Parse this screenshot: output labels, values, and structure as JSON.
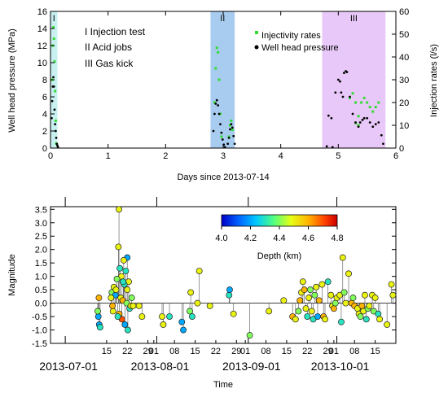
{
  "chart_data": [
    {
      "type": "scatter",
      "xlabel": "Days since 2013-07-14",
      "ylabel": "Well head pressure (MPa)",
      "ylabel_right": "Injection rates (l/s)",
      "xlim": [
        0,
        6
      ],
      "ylim": [
        0,
        16
      ],
      "ylim_right": [
        0,
        60
      ],
      "x_ticks": [
        "0",
        "1",
        "2",
        "3",
        "4",
        "5",
        "6"
      ],
      "y_ticks": [
        "0",
        "2",
        "4",
        "6",
        "8",
        "10",
        "12",
        "14",
        "16"
      ],
      "y_right_ticks": [
        "0",
        "10",
        "20",
        "30",
        "40",
        "50",
        "60"
      ],
      "phases": [
        {
          "label": "I",
          "start": 0.0,
          "end": 0.12,
          "color": "#c8f0f0"
        },
        {
          "label": "II",
          "start": 2.78,
          "end": 3.2,
          "color": "#a8ccf0"
        },
        {
          "label": "III",
          "start": 4.72,
          "end": 5.82,
          "color": "#e8c8f8"
        }
      ],
      "phase_legend": [
        "I   Injection test",
        "II  Acid jobs",
        "III  Gas kick"
      ],
      "legend": [
        "Injectivity rates",
        "Well head pressure"
      ],
      "colors": {
        "rates": "#33dd33",
        "pressure": "#000000"
      },
      "series": [
        {
          "name": "Well head pressure",
          "axis": "left",
          "points": [
            [
              0.02,
              3.5
            ],
            [
              0.03,
              5.5
            ],
            [
              0.04,
              7.2
            ],
            [
              0.05,
              8.3
            ],
            [
              0.06,
              7.2
            ],
            [
              0.07,
              4.5
            ],
            [
              0.08,
              2.8
            ],
            [
              0.09,
              2.0
            ],
            [
              0.1,
              1.2
            ],
            [
              0.11,
              0.5
            ],
            [
              0.12,
              0.3
            ],
            [
              0.13,
              0.1
            ],
            [
              2.83,
              2.0
            ],
            [
              2.85,
              4.0
            ],
            [
              2.87,
              5.2
            ],
            [
              2.89,
              5.6
            ],
            [
              2.91,
              5.0
            ],
            [
              2.93,
              4.0
            ],
            [
              2.95,
              2.8
            ],
            [
              2.97,
              1.8
            ],
            [
              2.99,
              1.0
            ],
            [
              3.01,
              0.4
            ],
            [
              3.03,
              0.1
            ],
            [
              3.08,
              0.5
            ],
            [
              3.1,
              1.2
            ],
            [
              3.12,
              2.2
            ],
            [
              3.14,
              2.8
            ],
            [
              3.16,
              2.4
            ],
            [
              3.18,
              1.4
            ],
            [
              3.2,
              0.5
            ],
            [
              4.8,
              0.2
            ],
            [
              4.9,
              0.1
            ],
            [
              4.95,
              6.5
            ],
            [
              5.0,
              8.0
            ],
            [
              5.03,
              7.8
            ],
            [
              5.05,
              6.5
            ],
            [
              5.08,
              6.0
            ],
            [
              5.1,
              8.8
            ],
            [
              5.13,
              9.0
            ],
            [
              5.15,
              8.9
            ],
            [
              5.2,
              6.0
            ],
            [
              5.25,
              4.0
            ],
            [
              5.3,
              3.0
            ],
            [
              5.35,
              2.5
            ],
            [
              5.38,
              3.0
            ],
            [
              5.42,
              3.3
            ],
            [
              5.45,
              3.5
            ],
            [
              5.5,
              3.5
            ],
            [
              5.55,
              3.0
            ],
            [
              5.6,
              2.5
            ],
            [
              5.65,
              2.8
            ],
            [
              5.7,
              3.0
            ],
            [
              5.75,
              1.5
            ],
            [
              5.78,
              0.5
            ],
            [
              4.83,
              3.8
            ],
            [
              4.88,
              3.5
            ]
          ]
        },
        {
          "name": "Injectivity rates",
          "axis": "right",
          "points": [
            [
              0.03,
              30
            ],
            [
              0.04,
              45
            ],
            [
              0.05,
              53
            ],
            [
              0.06,
              48
            ],
            [
              0.07,
              38
            ],
            [
              0.08,
              25
            ],
            [
              0.09,
              12
            ],
            [
              0.1,
              2
            ],
            [
              2.85,
              20
            ],
            [
              2.87,
              35
            ],
            [
              2.89,
              44
            ],
            [
              2.91,
              42
            ],
            [
              2.93,
              30
            ],
            [
              2.95,
              15
            ],
            [
              2.97,
              5
            ],
            [
              3.1,
              5
            ],
            [
              3.12,
              10
            ],
            [
              3.14,
              12
            ],
            [
              3.16,
              8
            ],
            [
              5.2,
              22
            ],
            [
              5.25,
              24
            ],
            [
              5.3,
              20
            ],
            [
              5.35,
              14
            ],
            [
              5.4,
              20
            ],
            [
              5.45,
              22
            ],
            [
              5.5,
              20
            ],
            [
              5.55,
              18
            ],
            [
              5.6,
              16
            ],
            [
              5.65,
              18
            ],
            [
              5.7,
              20
            ],
            [
              5.3,
              11
            ],
            [
              5.35,
              10
            ]
          ]
        }
      ]
    },
    {
      "type": "scatter",
      "xlabel": "Time",
      "ylabel": "Magnitude",
      "ylim": [
        -1.5,
        3.6
      ],
      "y_ticks": [
        "-1.5",
        "-1.0",
        "-0.5",
        "0.0",
        "0.5",
        "1.0",
        "1.5",
        "2.0",
        "2.5",
        "3.0",
        "3.5"
      ],
      "x_day_ticks": [
        "15",
        "22",
        "29",
        "01",
        "08",
        "15",
        "22",
        "29",
        "01",
        "08",
        "15",
        "22",
        "29",
        "01",
        "08",
        "15"
      ],
      "x_day_offsets": [
        -1,
        6,
        13,
        15,
        22,
        29,
        36,
        43,
        46,
        53,
        60,
        67,
        74,
        76,
        83,
        90
      ],
      "x_month_labels": [
        "2013-07-01",
        "2013-08-01",
        "2013-09-01",
        "2013-10-01"
      ],
      "x_month_offsets": [
        -15,
        16,
        47,
        77
      ],
      "xlim_days": [
        -20,
        97
      ],
      "colorbar": {
        "label": "Depth (km)",
        "range": [
          4.0,
          4.8
        ],
        "ticks": [
          "4.0",
          "4.2",
          "4.4",
          "4.6",
          "4.8"
        ]
      },
      "events": [
        {
          "day": 3.2,
          "mag": 3.5,
          "depth": 4.5
        },
        {
          "day": 3.0,
          "mag": 2.1,
          "depth": 4.5
        },
        {
          "day": 6.0,
          "mag": 1.7,
          "depth": 4.2
        },
        {
          "day": 4.8,
          "mag": 1.6,
          "depth": 4.5
        },
        {
          "day": 3.5,
          "mag": 1.3,
          "depth": 4.3
        },
        {
          "day": 5.5,
          "mag": 1.2,
          "depth": 4.3
        },
        {
          "day": 4.0,
          "mag": 1.0,
          "depth": 4.5
        },
        {
          "day": 2.5,
          "mag": 0.9,
          "depth": 4.4
        },
        {
          "day": 6.5,
          "mag": 0.8,
          "depth": 4.5
        },
        {
          "day": 5.0,
          "mag": 0.7,
          "depth": 4.3
        },
        {
          "day": 1.5,
          "mag": 0.6,
          "depth": 4.5
        },
        {
          "day": 0.8,
          "mag": 0.4,
          "depth": 4.4
        },
        {
          "day": 2.0,
          "mag": 0.3,
          "depth": 4.2
        },
        {
          "day": 3.8,
          "mag": 0.2,
          "depth": 4.5
        },
        {
          "day": 4.5,
          "mag": 0.1,
          "depth": 4.6
        },
        {
          "day": 5.8,
          "mag": 0.0,
          "depth": 4.4
        },
        {
          "day": 6.8,
          "mag": -0.2,
          "depth": 4.3
        },
        {
          "day": 3.3,
          "mag": -0.4,
          "depth": 4.6
        },
        {
          "day": 4.2,
          "mag": -0.6,
          "depth": 4.7
        },
        {
          "day": 2.8,
          "mag": -0.5,
          "depth": 4.3
        },
        {
          "day": 1.2,
          "mag": -0.3,
          "depth": 4.5
        },
        {
          "day": 7.2,
          "mag": -0.1,
          "depth": 4.5
        },
        {
          "day": 5.2,
          "mag": -0.8,
          "depth": 4.2
        },
        {
          "day": 6.2,
          "mag": -1.0,
          "depth": 4.3
        },
        {
          "day": -3.5,
          "mag": -0.8,
          "depth": 4.2
        },
        {
          "day": -3.8,
          "mag": -0.5,
          "depth": 4.2
        },
        {
          "day": -4.0,
          "mag": -0.3,
          "depth": 4.4
        },
        {
          "day": -3.6,
          "mag": 0.2,
          "depth": 4.6
        },
        {
          "day": -3.2,
          "mag": -0.9,
          "depth": 4.3
        },
        {
          "day": 0.5,
          "mag": 0.2,
          "depth": 4.5
        },
        {
          "day": 1.0,
          "mag": -0.1,
          "depth": 4.6
        },
        {
          "day": 2.2,
          "mag": 0.5,
          "depth": 4.5
        },
        {
          "day": 7.5,
          "mag": 0.2,
          "depth": 4.4
        },
        {
          "day": 8.0,
          "mag": -0.1,
          "depth": 4.5
        },
        {
          "day": 6.0,
          "mag": 0.5,
          "depth": 4.5
        },
        {
          "day": 4.6,
          "mag": 0.8,
          "depth": 4.3
        },
        {
          "day": 10.0,
          "mag": -0.1,
          "depth": 4.5
        },
        {
          "day": 11.0,
          "mag": -0.5,
          "depth": 4.5
        },
        {
          "day": 17.8,
          "mag": -0.5,
          "depth": 4.5
        },
        {
          "day": 18.2,
          "mag": -0.8,
          "depth": 4.5
        },
        {
          "day": 20.3,
          "mag": -0.5,
          "depth": 4.3
        },
        {
          "day": 24.5,
          "mag": -0.7,
          "depth": 4.2
        },
        {
          "day": 25.0,
          "mag": -1.0,
          "depth": 4.2
        },
        {
          "day": 27.2,
          "mag": -0.3,
          "depth": 4.4
        },
        {
          "day": 28.0,
          "mag": -0.5,
          "depth": 4.3
        },
        {
          "day": 27.5,
          "mag": 0.4,
          "depth": 4.5
        },
        {
          "day": 29.8,
          "mag": 0.0,
          "depth": 4.5
        },
        {
          "day": 30.4,
          "mag": 1.2,
          "depth": 4.5
        },
        {
          "day": 34.0,
          "mag": -0.1,
          "depth": 4.5
        },
        {
          "day": 40.5,
          "mag": 0.3,
          "depth": 4.3
        },
        {
          "day": 40.7,
          "mag": 0.5,
          "depth": 4.2
        },
        {
          "day": 42.0,
          "mag": -0.4,
          "depth": 4.5
        },
        {
          "day": 47.5,
          "mag": -1.2,
          "depth": 4.4
        },
        {
          "day": 54.0,
          "mag": -0.3,
          "depth": 4.5
        },
        {
          "day": 59.0,
          "mag": 0.1,
          "depth": 4.5
        },
        {
          "day": 62.0,
          "mag": -0.5,
          "depth": 4.6
        },
        {
          "day": 63.0,
          "mag": -0.6,
          "depth": 4.5
        },
        {
          "day": 64.0,
          "mag": -0.3,
          "depth": 4.4
        },
        {
          "day": 64.5,
          "mag": 0.1,
          "depth": 4.6
        },
        {
          "day": 65.0,
          "mag": 0.4,
          "depth": 4.5
        },
        {
          "day": 65.5,
          "mag": 0.8,
          "depth": 4.5
        },
        {
          "day": 66.0,
          "mag": 0.5,
          "depth": 4.6
        },
        {
          "day": 66.5,
          "mag": -0.2,
          "depth": 4.5
        },
        {
          "day": 67.0,
          "mag": -0.5,
          "depth": 4.3
        },
        {
          "day": 67.5,
          "mag": 0.2,
          "depth": 4.5
        },
        {
          "day": 68.0,
          "mag": 0.5,
          "depth": 4.4
        },
        {
          "day": 68.5,
          "mag": -0.3,
          "depth": 4.5
        },
        {
          "day": 69.0,
          "mag": -0.6,
          "depth": 4.3
        },
        {
          "day": 69.5,
          "mag": 0.3,
          "depth": 4.4
        },
        {
          "day": 70.0,
          "mag": 0.6,
          "depth": 4.5
        },
        {
          "day": 70.5,
          "mag": -0.5,
          "depth": 4.2
        },
        {
          "day": 71.0,
          "mag": 0.1,
          "depth": 4.6
        },
        {
          "day": 72.0,
          "mag": 0.7,
          "depth": 4.5
        },
        {
          "day": 72.5,
          "mag": -0.5,
          "depth": 4.6
        },
        {
          "day": 73.0,
          "mag": -0.6,
          "depth": 4.5
        },
        {
          "day": 74.0,
          "mag": 0.8,
          "depth": 4.3
        },
        {
          "day": 75.0,
          "mag": 0.3,
          "depth": 4.5
        },
        {
          "day": 75.5,
          "mag": -0.1,
          "depth": 4.5
        },
        {
          "day": 76.0,
          "mag": -0.2,
          "depth": 4.6
        },
        {
          "day": 76.5,
          "mag": 0.0,
          "depth": 4.4
        },
        {
          "day": 77.0,
          "mag": 0.2,
          "depth": 4.5
        },
        {
          "day": 78.0,
          "mag": 0.3,
          "depth": 4.5
        },
        {
          "day": 78.5,
          "mag": -0.7,
          "depth": 4.3
        },
        {
          "day": 79.0,
          "mag": 1.7,
          "depth": 4.5
        },
        {
          "day": 79.5,
          "mag": 0.4,
          "depth": 4.4
        },
        {
          "day": 80.0,
          "mag": 0.0,
          "depth": 4.5
        },
        {
          "day": 81.0,
          "mag": 1.1,
          "depth": 4.5
        },
        {
          "day": 82.0,
          "mag": 0.0,
          "depth": 4.6
        },
        {
          "day": 82.5,
          "mag": 0.2,
          "depth": 4.4
        },
        {
          "day": 83.0,
          "mag": -0.1,
          "depth": 4.6
        },
        {
          "day": 84.0,
          "mag": -0.2,
          "depth": 4.5
        },
        {
          "day": 84.5,
          "mag": -0.4,
          "depth": 4.5
        },
        {
          "day": 85.0,
          "mag": -0.5,
          "depth": 4.4
        },
        {
          "day": 85.5,
          "mag": -0.1,
          "depth": 4.6
        },
        {
          "day": 86.0,
          "mag": -0.3,
          "depth": 4.5
        },
        {
          "day": 86.5,
          "mag": 0.3,
          "depth": 4.5
        },
        {
          "day": 87.0,
          "mag": -0.6,
          "depth": 4.3
        },
        {
          "day": 87.5,
          "mag": -0.2,
          "depth": 4.4
        },
        {
          "day": 88.0,
          "mag": -0.1,
          "depth": 4.5
        },
        {
          "day": 89.0,
          "mag": 0.3,
          "depth": 4.5
        },
        {
          "day": 89.5,
          "mag": -0.3,
          "depth": 4.4
        },
        {
          "day": 90.0,
          "mag": 0.2,
          "depth": 4.5
        },
        {
          "day": 91.0,
          "mag": -0.4,
          "depth": 4.3
        },
        {
          "day": 91.5,
          "mag": -0.6,
          "depth": 4.5
        },
        {
          "day": 94.0,
          "mag": -0.8,
          "depth": 4.5
        },
        {
          "day": 95.5,
          "mag": 0.7,
          "depth": 4.5
        },
        {
          "day": 96.0,
          "mag": 0.3,
          "depth": 4.5
        }
      ]
    }
  ]
}
